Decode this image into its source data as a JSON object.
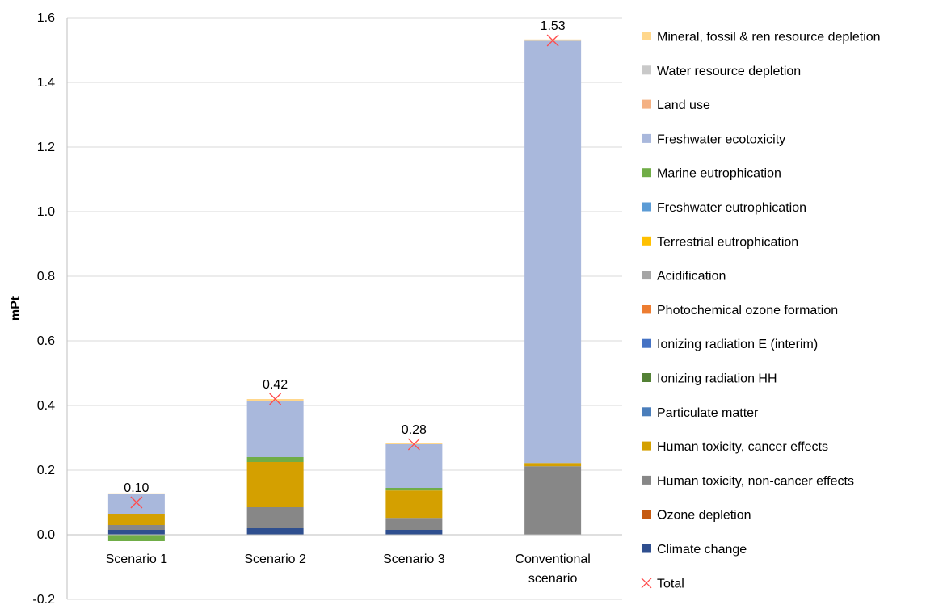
{
  "chart_data": {
    "type": "bar",
    "stacked": true,
    "ylabel": "mPt",
    "ylim": [
      -0.2,
      1.6
    ],
    "yticks": [
      "-0.2",
      "0.0",
      "0.2",
      "0.4",
      "0.6",
      "0.8",
      "1.0",
      "1.2",
      "1.4",
      "1.6"
    ],
    "grid": true,
    "legend_position": "right",
    "categories": [
      {
        "lines": [
          "Scenario 1"
        ]
      },
      {
        "lines": [
          "Scenario 2"
        ]
      },
      {
        "lines": [
          "Scenario 3"
        ]
      },
      {
        "lines": [
          "Conventional",
          "scenario"
        ]
      }
    ],
    "series": [
      {
        "name": "Climate change",
        "color": "#2F4F8F",
        "values": [
          0.015,
          0.02,
          0.015,
          0.0
        ]
      },
      {
        "name": "Ozone depletion",
        "color": "#C55A11",
        "values": [
          0.0,
          0.0,
          0.0,
          0.0
        ]
      },
      {
        "name": "Human toxicity, non-cancer effects",
        "color": "#878787",
        "values": [
          0.015,
          0.065,
          0.037,
          0.212
        ]
      },
      {
        "name": "Human toxicity, cancer effects",
        "color": "#D4A000",
        "values": [
          0.035,
          0.14,
          0.085,
          0.01
        ]
      },
      {
        "name": "Particulate matter",
        "color": "#4A7EBB",
        "values": [
          0.0,
          0.0,
          0.0,
          0.0
        ]
      },
      {
        "name": "Ionizing radiation HH",
        "color": "#538135",
        "values": [
          0.0,
          0.0,
          0.0,
          0.0
        ]
      },
      {
        "name": "Ionizing radiation E (interim)",
        "color": "#4472C4",
        "values": [
          0.0,
          0.0,
          0.0,
          0.0
        ]
      },
      {
        "name": "Photochemical ozone formation",
        "color": "#ED7D31",
        "values": [
          0.0,
          0.0,
          0.0,
          0.0
        ]
      },
      {
        "name": "Acidification",
        "color": "#A5A5A5",
        "values": [
          0.0,
          0.0,
          0.0,
          0.0
        ]
      },
      {
        "name": "Terrestrial eutrophication",
        "color": "#FFC000",
        "values": [
          0.0,
          0.0,
          0.0,
          0.0
        ]
      },
      {
        "name": "Freshwater eutrophication",
        "color": "#5B9BD5",
        "values": [
          0.0,
          0.0,
          0.0,
          0.0
        ]
      },
      {
        "name": "Marine eutrophication",
        "color": "#70AD47",
        "values": [
          -0.02,
          0.015,
          0.008,
          0.0
        ]
      },
      {
        "name": "Freshwater ecotoxicity",
        "color": "#A9B8DC",
        "values": [
          0.06,
          0.175,
          0.135,
          1.307
        ]
      },
      {
        "name": "Land use",
        "color": "#F4B183",
        "values": [
          0.0,
          0.0,
          0.0,
          0.0
        ]
      },
      {
        "name": "Water resource depletion",
        "color": "#C9C9C9",
        "values": [
          0.0,
          0.0,
          0.0,
          0.0
        ]
      },
      {
        "name": "Mineral, fossil & ren resource depletion",
        "color": "#FFD78C",
        "values": [
          0.003,
          0.005,
          0.004,
          0.004
        ]
      }
    ],
    "total": {
      "name": "Total",
      "marker": "x",
      "color": "#FF4B4B",
      "values": [
        0.1,
        0.42,
        0.28,
        1.53
      ],
      "labels": [
        "0.10",
        "0.42",
        "0.28",
        "1.53"
      ]
    }
  }
}
